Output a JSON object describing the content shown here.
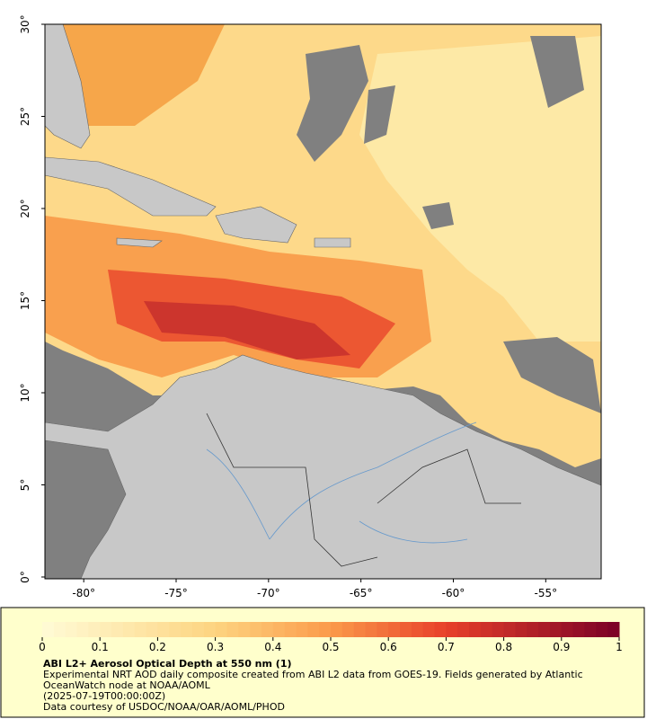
{
  "map": {
    "lat_ticks": [
      {
        "value": 0,
        "label": "0°"
      },
      {
        "value": 5,
        "label": "5°"
      },
      {
        "value": 10,
        "label": "10°"
      },
      {
        "value": 15,
        "label": "15°"
      },
      {
        "value": 20,
        "label": "20°"
      },
      {
        "value": 25,
        "label": "25°"
      },
      {
        "value": 30,
        "label": "30°"
      }
    ],
    "lon_ticks": [
      {
        "value": -80,
        "label": "-80°"
      },
      {
        "value": -75,
        "label": "-75°"
      },
      {
        "value": -70,
        "label": "-70°"
      },
      {
        "value": -65,
        "label": "-65°"
      },
      {
        "value": -60,
        "label": "-60°"
      },
      {
        "value": -55,
        "label": "-55°"
      }
    ],
    "lat_range": [
      0,
      30
    ],
    "lon_range": [
      -82.1,
      -52
    ]
  },
  "colorbar": {
    "range": [
      0,
      1
    ],
    "ticks": [
      0,
      0.1,
      0.2,
      0.3,
      0.4,
      0.5,
      0.6,
      0.7,
      0.8,
      0.9,
      1
    ]
  },
  "caption": {
    "title": "ABI L2+ Aerosol Optical Depth at 550 nm (1)",
    "lines": [
      "Experimental NRT AOD daily composite created from ABI L2 data from GOES-19. Fields generated by Atlantic",
      "OceanWatch node at NOAA/AOML",
      "(2025-07-19T00:00:00Z)",
      "Data courtesy of USDOC/NOAA/OAR/AOML/PHOD"
    ]
  }
}
